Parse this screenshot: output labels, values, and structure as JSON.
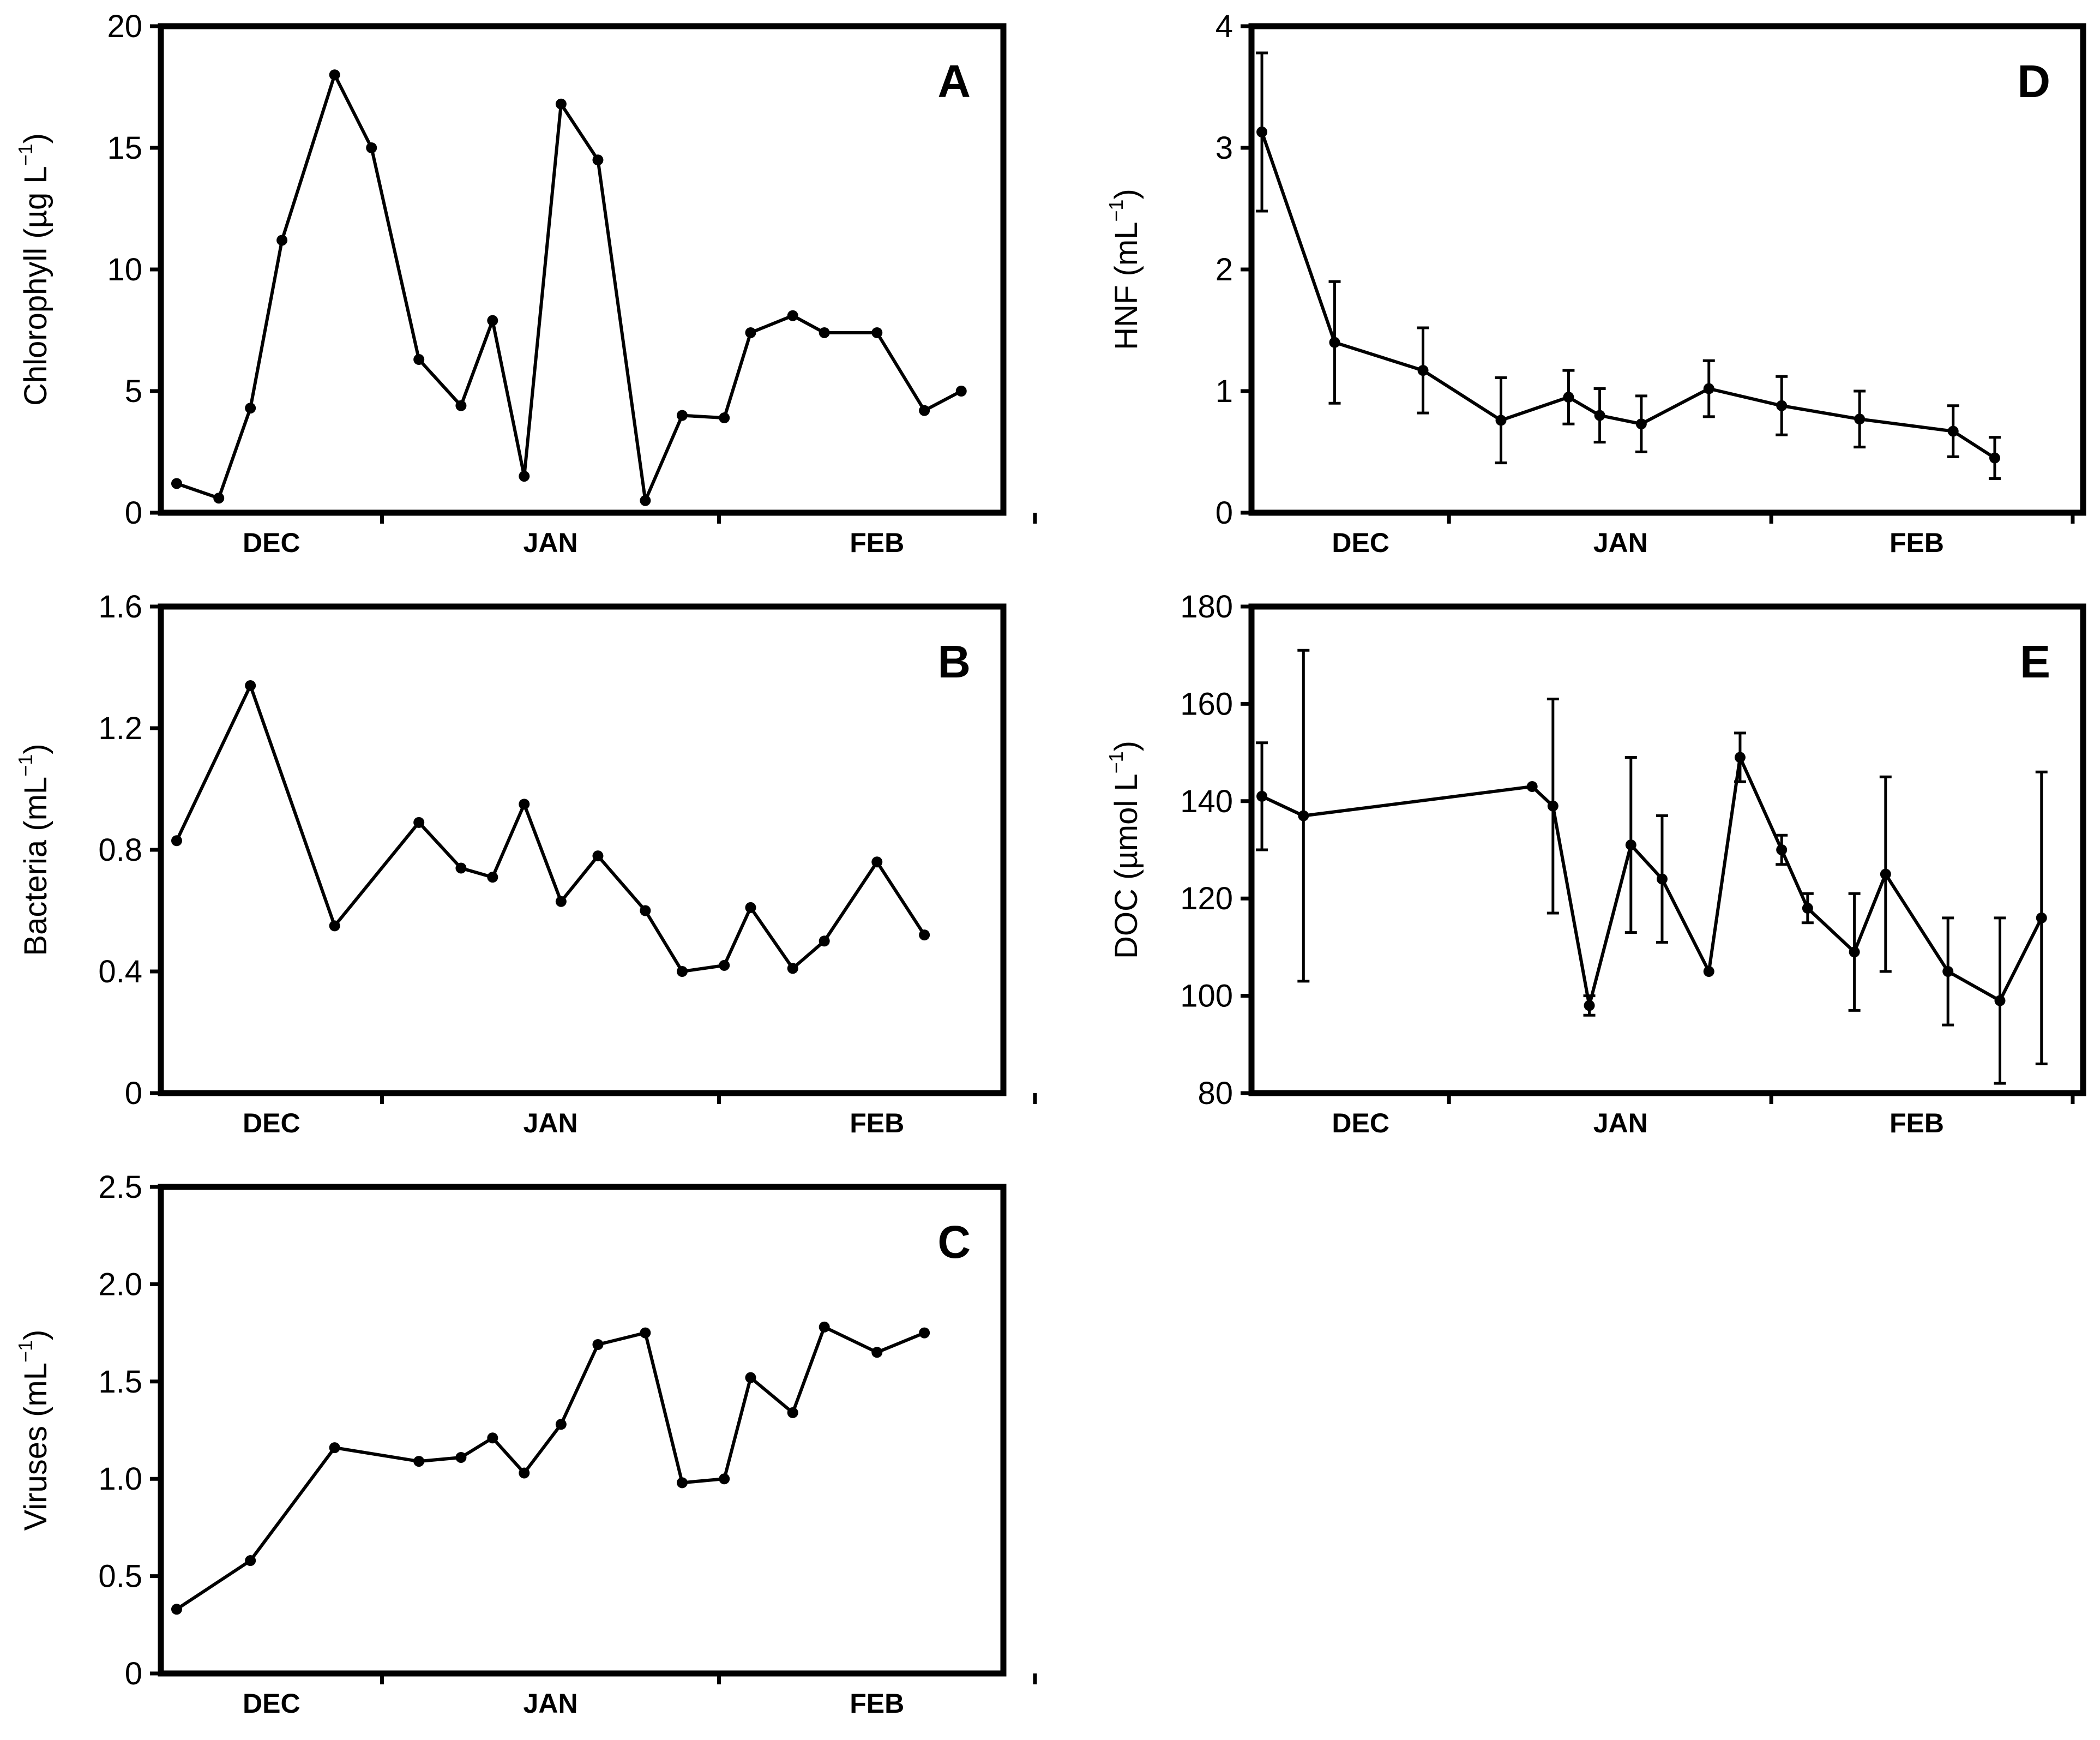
{
  "chart_data": [
    {
      "id": "A",
      "panel_label": "A",
      "type": "line",
      "ylabel": {
        "main": "Chlorophyll (µg L",
        "sup": "−1",
        "close": ")"
      },
      "ylim": [
        0,
        20
      ],
      "yticks": [
        0,
        5,
        10,
        15,
        20
      ],
      "yticklabels": [
        "0",
        "5",
        "10",
        "15",
        "20"
      ],
      "xlim": [
        0,
        80
      ],
      "month_boundaries": [
        21,
        53,
        83
      ],
      "months": [
        {
          "label": "DEC",
          "x": 10.5
        },
        {
          "label": "JAN",
          "x": 37
        },
        {
          "label": "FEB",
          "x": 68
        }
      ],
      "series": [
        {
          "name": "Chlorophyll",
          "x": [
            1.5,
            5.5,
            8.5,
            11.5,
            16.5,
            20.0,
            24.5,
            28.5,
            31.5,
            34.5,
            38.0,
            41.5,
            46.0,
            49.5,
            53.5,
            56.0,
            60.0,
            63.0,
            68.0,
            72.5,
            76.0
          ],
          "y": [
            1.2,
            0.6,
            4.3,
            11.2,
            18.0,
            15.0,
            6.3,
            4.4,
            7.9,
            1.5,
            16.8,
            14.5,
            0.5,
            4.0,
            3.9,
            7.4,
            8.1,
            7.4,
            7.4,
            4.2,
            5.0
          ]
        }
      ]
    },
    {
      "id": "B",
      "panel_label": "B",
      "type": "line",
      "ylabel": {
        "main": "Bacteria (mL",
        "sup": "−1",
        "close": ")"
      },
      "ylim": [
        0,
        1.6
      ],
      "yticks": [
        0,
        0.4,
        0.8,
        1.2,
        1.6
      ],
      "yticklabels": [
        "0",
        "0.4",
        "0.8",
        "1.2",
        "1.6"
      ],
      "xlim": [
        0,
        80
      ],
      "month_boundaries": [
        21,
        53,
        83
      ],
      "months": [
        {
          "label": "DEC",
          "x": 10.5
        },
        {
          "label": "JAN",
          "x": 37
        },
        {
          "label": "FEB",
          "x": 68
        }
      ],
      "series": [
        {
          "name": "Bacteria",
          "x": [
            1.5,
            8.5,
            16.5,
            24.5,
            28.5,
            31.5,
            34.5,
            38.0,
            41.5,
            46.0,
            49.5,
            53.5,
            56.0,
            60.0,
            63.0,
            68.0,
            72.5
          ],
          "y": [
            0.83,
            1.34,
            0.55,
            0.89,
            0.74,
            0.71,
            0.95,
            0.63,
            0.78,
            0.6,
            0.4,
            0.42,
            0.61,
            0.41,
            0.5,
            0.76,
            0.52
          ]
        }
      ]
    },
    {
      "id": "C",
      "panel_label": "C",
      "type": "line",
      "ylabel": {
        "main": "Viruses (mL",
        "sup": "−1",
        "close": ")"
      },
      "ylim": [
        0,
        2.5
      ],
      "yticks": [
        0,
        0.5,
        1.0,
        1.5,
        2.0,
        2.5
      ],
      "yticklabels": [
        "0",
        "0.5",
        "1.0",
        "1.5",
        "2.0",
        "2.5"
      ],
      "xlim": [
        0,
        80
      ],
      "month_boundaries": [
        21,
        53,
        83
      ],
      "months": [
        {
          "label": "DEC",
          "x": 10.5
        },
        {
          "label": "JAN",
          "x": 37
        },
        {
          "label": "FEB",
          "x": 68
        }
      ],
      "series": [
        {
          "name": "Viruses",
          "x": [
            1.5,
            8.5,
            16.5,
            24.5,
            28.5,
            31.5,
            34.5,
            38.0,
            41.5,
            46.0,
            49.5,
            53.5,
            56.0,
            60.0,
            63.0,
            68.0,
            72.5
          ],
          "y": [
            0.33,
            0.58,
            1.16,
            1.09,
            1.11,
            1.21,
            1.03,
            1.28,
            1.69,
            1.75,
            0.98,
            1.0,
            1.52,
            1.34,
            1.78,
            1.65,
            1.75
          ]
        }
      ]
    },
    {
      "id": "D",
      "panel_label": "D",
      "type": "line",
      "ylabel": {
        "main": "HNF (mL",
        "sup": "−1",
        "close": ")"
      },
      "ylim": [
        0,
        4
      ],
      "yticks": [
        0,
        1,
        2,
        3,
        4
      ],
      "yticklabels": [
        "0",
        "1",
        "2",
        "3",
        "4"
      ],
      "xlim": [
        0,
        80
      ],
      "month_boundaries": [
        19,
        50,
        79
      ],
      "months": [
        {
          "label": "DEC",
          "x": 10.5
        },
        {
          "label": "JAN",
          "x": 35.5
        },
        {
          "label": "FEB",
          "x": 64
        }
      ],
      "series": [
        {
          "name": "HNF",
          "x": [
            1.0,
            8.0,
            16.5,
            24.0,
            30.5,
            33.5,
            37.5,
            44.0,
            51.0,
            58.5,
            67.5,
            71.5
          ],
          "y": [
            3.13,
            1.4,
            1.17,
            0.76,
            0.95,
            0.8,
            0.73,
            1.02,
            0.88,
            0.77,
            0.67,
            0.45
          ],
          "err": [
            0.65,
            0.5,
            0.35,
            0.35,
            0.22,
            0.22,
            0.23,
            0.23,
            0.24,
            0.23,
            0.21,
            0.17
          ]
        }
      ]
    },
    {
      "id": "E",
      "panel_label": "E",
      "type": "line",
      "ylabel": {
        "main": "DOC (µmol L",
        "sup": "−1",
        "close": ")"
      },
      "ylim": [
        80,
        180
      ],
      "yticks": [
        80,
        100,
        120,
        140,
        160,
        180
      ],
      "yticklabels": [
        "80",
        "100",
        "120",
        "140",
        "160",
        "180"
      ],
      "xlim": [
        0,
        80
      ],
      "month_boundaries": [
        19,
        50,
        79
      ],
      "months": [
        {
          "label": "DEC",
          "x": 10.5
        },
        {
          "label": "JAN",
          "x": 35.5
        },
        {
          "label": "FEB",
          "x": 64
        }
      ],
      "series": [
        {
          "name": "DOC",
          "x": [
            1.0,
            5.0,
            27.0,
            29.0,
            32.5,
            36.5,
            39.5,
            44.0,
            47.0,
            51.0,
            53.5,
            58.0,
            61.0,
            67.0,
            72.0,
            76.0
          ],
          "y": [
            141,
            137,
            143,
            139,
            98,
            131,
            124,
            105,
            149,
            130,
            118,
            109,
            125,
            105,
            99,
            116
          ],
          "err": [
            11,
            34,
            0,
            22,
            2,
            18,
            13,
            0,
            5,
            3,
            3,
            12,
            20,
            11,
            17,
            30
          ]
        }
      ]
    }
  ]
}
